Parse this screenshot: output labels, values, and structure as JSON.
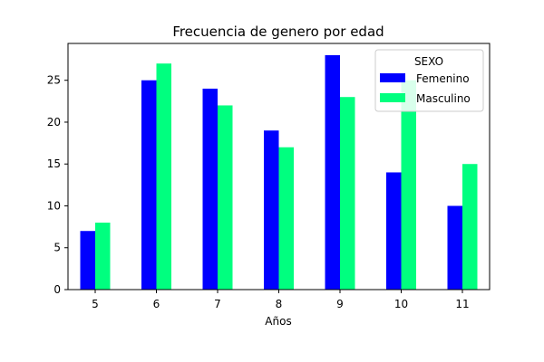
{
  "chart_data": {
    "type": "bar",
    "title": "Frecuencia de genero por edad",
    "xlabel": "Años",
    "ylabel": "",
    "categories": [
      "5",
      "6",
      "7",
      "8",
      "9",
      "10",
      "11"
    ],
    "ylim": [
      0,
      29.4
    ],
    "yticks": [
      0,
      5,
      10,
      15,
      20,
      25
    ],
    "grid": false,
    "legend": {
      "title": "SEXO",
      "placement": "top-right"
    },
    "series": [
      {
        "name": "Femenino",
        "color": "#0000ff",
        "values": [
          7,
          25,
          24,
          19,
          28,
          14,
          10
        ]
      },
      {
        "name": "Masculino",
        "color": "#00ff7f",
        "values": [
          8,
          27,
          22,
          17,
          23,
          25,
          15
        ]
      }
    ]
  }
}
